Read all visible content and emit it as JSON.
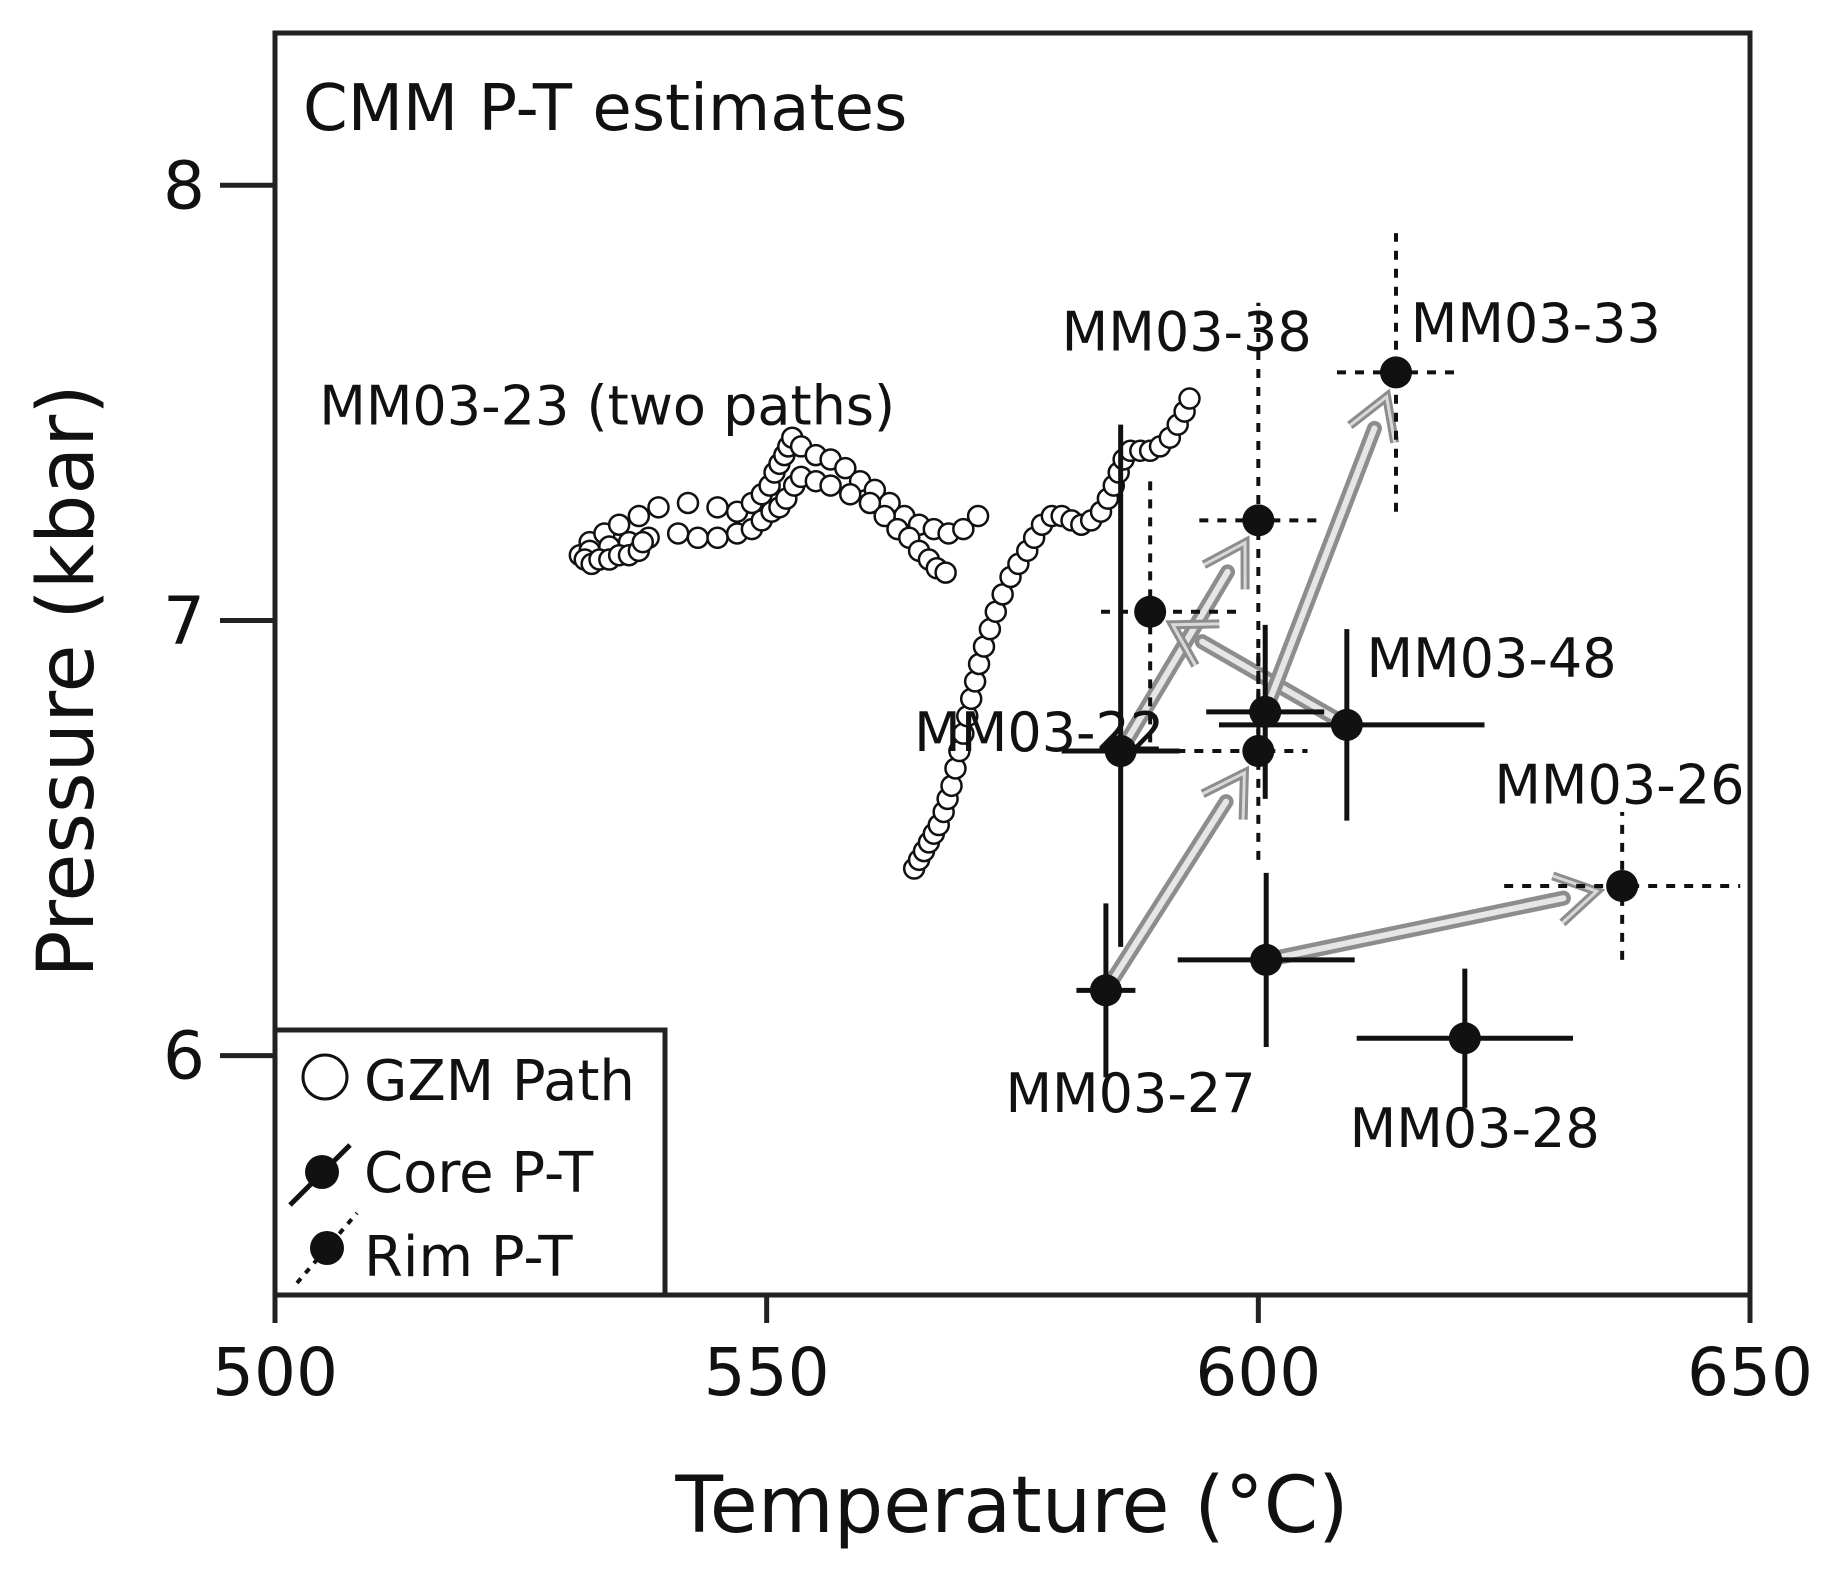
{
  "chart_data": {
    "type": "scatter",
    "title": "CMM P-T estimates",
    "xlabel": "Temperature (°C)",
    "ylabel": "Pressure (kbar)",
    "xlim": [
      500,
      650
    ],
    "ylim": [
      5.45,
      8.35
    ],
    "xticks": [
      500,
      550,
      600,
      650
    ],
    "yticks": [
      6,
      7,
      8
    ],
    "grid": false,
    "legend_position": "bottom-left",
    "legend": [
      {
        "name": "GZM Path",
        "marker": "open-circle"
      },
      {
        "name": "Core P-T",
        "marker": "filled-circle-solid-errorbar"
      },
      {
        "name": "Rim P-T",
        "marker": "filled-circle-dashed-errorbar"
      }
    ],
    "gzm_paths": [
      {
        "name": "MM03-23 path 1",
        "points": [
          [
            532,
            7.18
          ],
          [
            533.5,
            7.2
          ],
          [
            535,
            7.22
          ],
          [
            537,
            7.24
          ],
          [
            539,
            7.26
          ],
          [
            542,
            7.27
          ],
          [
            545,
            7.26
          ],
          [
            547,
            7.25
          ],
          [
            548.5,
            7.27
          ],
          [
            549.5,
            7.29
          ],
          [
            550.3,
            7.31
          ],
          [
            550.8,
            7.34
          ],
          [
            551.3,
            7.36
          ],
          [
            551.8,
            7.38
          ],
          [
            552.2,
            7.4
          ],
          [
            552.6,
            7.42
          ],
          [
            553.5,
            7.4
          ],
          [
            555,
            7.38
          ],
          [
            556.5,
            7.37
          ],
          [
            558,
            7.35
          ],
          [
            559.5,
            7.32
          ],
          [
            561,
            7.3
          ],
          [
            562.5,
            7.27
          ],
          [
            564,
            7.24
          ],
          [
            565.5,
            7.22
          ],
          [
            567,
            7.21
          ],
          [
            568.5,
            7.2
          ],
          [
            570,
            7.21
          ],
          [
            571.5,
            7.24
          ]
        ]
      },
      {
        "name": "MM03-23 path 2",
        "points": [
          [
            531,
            7.15
          ],
          [
            532,
            7.16
          ],
          [
            534,
            7.17
          ],
          [
            536,
            7.18
          ],
          [
            538,
            7.19
          ],
          [
            541,
            7.2
          ],
          [
            543,
            7.19
          ],
          [
            545,
            7.19
          ],
          [
            547,
            7.2
          ],
          [
            548.5,
            7.21
          ],
          [
            549.5,
            7.23
          ],
          [
            550.5,
            7.25
          ],
          [
            551.3,
            7.26
          ],
          [
            552,
            7.28
          ],
          [
            552.8,
            7.31
          ],
          [
            553.5,
            7.33
          ],
          [
            555,
            7.32
          ],
          [
            556.5,
            7.31
          ],
          [
            558.5,
            7.29
          ],
          [
            560.5,
            7.27
          ],
          [
            562,
            7.24
          ],
          [
            563.3,
            7.21
          ],
          [
            564.5,
            7.19
          ],
          [
            565.5,
            7.16
          ],
          [
            566.5,
            7.14
          ],
          [
            567.3,
            7.12
          ],
          [
            568.2,
            7.11
          ]
        ]
      },
      {
        "name": "MM03-23 cluster",
        "points": [
          [
            531.5,
            7.14
          ],
          [
            532.2,
            7.13
          ],
          [
            533,
            7.14
          ],
          [
            534,
            7.14
          ],
          [
            535,
            7.15
          ],
          [
            536,
            7.15
          ],
          [
            537,
            7.16
          ],
          [
            537.4,
            7.18
          ]
        ]
      },
      {
        "name": "MM03-22 / MM03-38 path",
        "points": [
          [
            565,
            6.43
          ],
          [
            565.5,
            6.45
          ],
          [
            566,
            6.47
          ],
          [
            566.5,
            6.49
          ],
          [
            567,
            6.51
          ],
          [
            567.5,
            6.53
          ],
          [
            568,
            6.56
          ],
          [
            568.4,
            6.59
          ],
          [
            568.8,
            6.62
          ],
          [
            569.2,
            6.66
          ],
          [
            569.6,
            6.7
          ],
          [
            570,
            6.74
          ],
          [
            570.4,
            6.78
          ],
          [
            570.8,
            6.82
          ],
          [
            571.2,
            6.86
          ],
          [
            571.6,
            6.9
          ],
          [
            572.1,
            6.94
          ],
          [
            572.7,
            6.98
          ],
          [
            573.3,
            7.02
          ],
          [
            574,
            7.06
          ],
          [
            574.8,
            7.1
          ],
          [
            575.6,
            7.13
          ],
          [
            576.5,
            7.16
          ],
          [
            577.2,
            7.19
          ],
          [
            578,
            7.22
          ],
          [
            579,
            7.24
          ],
          [
            580,
            7.24
          ],
          [
            581,
            7.23
          ],
          [
            582,
            7.22
          ],
          [
            583,
            7.23
          ],
          [
            584,
            7.25
          ],
          [
            584.7,
            7.28
          ],
          [
            585.3,
            7.31
          ],
          [
            585.8,
            7.34
          ],
          [
            586.3,
            7.37
          ],
          [
            587,
            7.39
          ],
          [
            588,
            7.39
          ],
          [
            589,
            7.39
          ],
          [
            590,
            7.4
          ],
          [
            591,
            7.42
          ],
          [
            591.8,
            7.45
          ],
          [
            592.5,
            7.48
          ],
          [
            593,
            7.51
          ]
        ]
      }
    ],
    "samples": [
      {
        "name": "MM03-27",
        "points": [
          {
            "kind": "core",
            "t": 584.5,
            "p": 6.15,
            "t_err": [
              3,
              3
            ],
            "p_err": [
              0.2,
              0.2
            ]
          }
        ]
      },
      {
        "name": "MM03-22",
        "points": [
          {
            "kind": "core",
            "t": 586,
            "p": 6.7,
            "t_err": [
              6,
              6
            ],
            "p_err": [
              0.45,
              0.75
            ]
          },
          {
            "kind": "rim",
            "t": 589,
            "p": 7.02,
            "t_err": [
              5,
              9
            ],
            "p_err": [
              0.3,
              0.3
            ]
          }
        ]
      },
      {
        "name": "MM03-38",
        "points": [
          {
            "kind": "rim",
            "t": 600,
            "p": 6.7,
            "t_err": [
              12,
              5
            ],
            "p_err": [
              0.25,
              0.25
            ]
          },
          {
            "kind": "rim",
            "t": 600,
            "p": 7.23,
            "t_err": [
              6,
              6.5
            ],
            "p_err": [
              0.5,
              0.5
            ]
          }
        ]
      },
      {
        "name": "MM03-48",
        "points": [
          {
            "kind": "core",
            "t": 609,
            "p": 6.76,
            "t_err": [
              13,
              14
            ],
            "p_err": [
              0.22,
              0.22
            ]
          },
          {
            "kind": "core",
            "t": 600.7,
            "p": 6.79,
            "t_err": [
              6,
              6
            ],
            "p_err": [
              0.2,
              0.2
            ]
          }
        ]
      },
      {
        "name": "MM03-33",
        "points": [
          {
            "kind": "rim",
            "t": 614,
            "p": 7.57,
            "t_err": [
              6,
              6.5
            ],
            "p_err": [
              0.32,
              0.32
            ]
          }
        ]
      },
      {
        "name": "MM03-26",
        "points": [
          {
            "kind": "core",
            "t": 600.8,
            "p": 6.22,
            "t_err": [
              9,
              9
            ],
            "p_err": [
              0.2,
              0.2
            ]
          },
          {
            "kind": "rim",
            "t": 637,
            "p": 6.39,
            "t_err": [
              12,
              12
            ],
            "p_err": [
              0.17,
              0.17
            ]
          }
        ]
      },
      {
        "name": "MM03-28",
        "points": [
          {
            "kind": "core",
            "t": 621,
            "p": 6.04,
            "t_err": [
              11,
              11
            ],
            "p_err": [
              0.16,
              0.16
            ]
          }
        ]
      }
    ],
    "arrows": [
      {
        "from": [
          584.5,
          6.15
        ],
        "to": [
          600,
          6.7
        ]
      },
      {
        "from": [
          586,
          6.7
        ],
        "to": [
          600,
          7.23
        ]
      },
      {
        "from": [
          609,
          6.76
        ],
        "to": [
          589,
          7.02
        ]
      },
      {
        "from": [
          600.7,
          6.79
        ],
        "to": [
          614,
          7.57
        ]
      },
      {
        "from": [
          600.8,
          6.22
        ],
        "to": [
          637,
          6.39
        ]
      }
    ],
    "annotations": [
      {
        "text": "MM03-23 (two paths)",
        "t": 504.5,
        "p": 7.45,
        "anchor": "start"
      },
      {
        "text": "MM03-38",
        "t": 580,
        "p": 7.62,
        "anchor": "start"
      },
      {
        "text": "MM03-33",
        "t": 615.5,
        "p": 7.64,
        "anchor": "start"
      },
      {
        "text": "MM03-48",
        "t": 611,
        "p": 6.87,
        "anchor": "start"
      },
      {
        "text": "MM03-22",
        "t": 565,
        "p": 6.7,
        "anchor": "start"
      },
      {
        "text": "MM03-26",
        "t": 624,
        "p": 6.58,
        "anchor": "start"
      },
      {
        "text": "MM03-27",
        "t": 587,
        "p": 5.87,
        "anchor": "middle"
      },
      {
        "text": "MM03-28",
        "t": 622,
        "p": 5.79,
        "anchor": "middle"
      }
    ]
  }
}
